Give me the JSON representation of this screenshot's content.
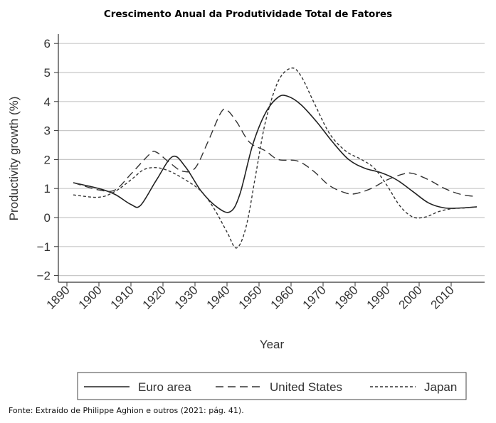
{
  "chart_data": {
    "type": "line",
    "title": "Crescimento Anual da Produtividade Total de Fatores",
    "xlabel": "Year",
    "ylabel": "Productivity growth (%)",
    "xlim": [
      1887.4,
      2020.4
    ],
    "ylim": [
      -2.2,
      6.2
    ],
    "xticks": [
      1890,
      1900,
      1910,
      1920,
      1930,
      1940,
      1950,
      1960,
      1970,
      1980,
      1990,
      2000,
      2010
    ],
    "xtick_labels": [
      "1890",
      "1900",
      "1910",
      "1920",
      "1930",
      "1940",
      "1950",
      "1960",
      "1970",
      "1980",
      "1990",
      "2000",
      "2010"
    ],
    "yticks": [
      -2,
      -1,
      0,
      1,
      2,
      3,
      4,
      5,
      6
    ],
    "ytick_labels": [
      "−2",
      "−1",
      "0",
      "1",
      "2",
      "3",
      "4",
      "5",
      "6"
    ],
    "grid": true,
    "legend_position": "bottom",
    "series": [
      {
        "name": "Euro area",
        "style": "solid",
        "color": "#222222",
        "x": [
          1892,
          1900,
          1905,
          1910,
          1913,
          1918,
          1923,
          1927,
          1932,
          1937,
          1941,
          1944,
          1948,
          1952,
          1956,
          1959,
          1963,
          1968,
          1973,
          1978,
          1983,
          1988,
          1993,
          1998,
          2003,
          2008,
          2013,
          2018
        ],
        "y": [
          1.2,
          1.0,
          0.8,
          0.45,
          0.42,
          1.3,
          2.1,
          1.75,
          0.9,
          0.35,
          0.2,
          0.8,
          2.5,
          3.6,
          4.15,
          4.18,
          3.9,
          3.3,
          2.6,
          2.0,
          1.7,
          1.55,
          1.3,
          0.9,
          0.5,
          0.33,
          0.33,
          0.37
        ]
      },
      {
        "name": "United States",
        "style": "dashed",
        "color": "#333333",
        "x": [
          1892,
          1900,
          1905,
          1910,
          1916,
          1918,
          1922,
          1926,
          1930,
          1934,
          1938,
          1940,
          1943,
          1947,
          1952,
          1956,
          1962,
          1967,
          1972,
          1977,
          1980,
          1985,
          1990,
          1995,
          1998,
          2003,
          2008,
          2013,
          2018
        ],
        "y": [
          1.2,
          0.95,
          0.95,
          1.5,
          2.2,
          2.25,
          1.9,
          1.6,
          1.7,
          2.6,
          3.6,
          3.7,
          3.3,
          2.6,
          2.3,
          2.0,
          1.95,
          1.6,
          1.1,
          0.85,
          0.82,
          1.0,
          1.3,
          1.5,
          1.52,
          1.3,
          1.0,
          0.8,
          0.72
        ]
      },
      {
        "name": "Japan",
        "style": "dotted",
        "color": "#333333",
        "x": [
          1892,
          1900,
          1905,
          1910,
          1914,
          1918,
          1922,
          1927,
          1932,
          1936,
          1940,
          1943,
          1946,
          1949,
          1952,
          1956,
          1960,
          1963,
          1967,
          1972,
          1977,
          1982,
          1986,
          1990,
          1994,
          1998,
          2002,
          2006,
          2010,
          2014,
          2018
        ],
        "y": [
          0.78,
          0.7,
          0.9,
          1.3,
          1.65,
          1.72,
          1.6,
          1.3,
          0.9,
          0.3,
          -0.5,
          -1.05,
          -0.3,
          1.5,
          3.3,
          4.7,
          5.15,
          4.9,
          4.0,
          2.9,
          2.3,
          2.0,
          1.7,
          1.1,
          0.4,
          0.02,
          0.02,
          0.2,
          0.3,
          0.33,
          0.37
        ]
      }
    ]
  },
  "footnote": "Fonte: Extraído de Philippe Aghion e outros (2021: pág. 41)."
}
